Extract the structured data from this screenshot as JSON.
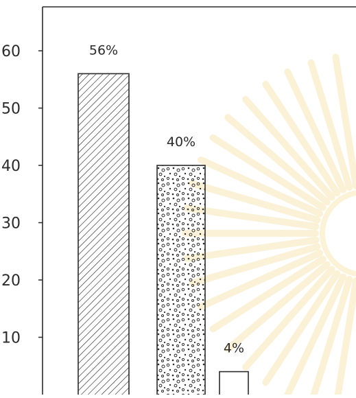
{
  "chart_data": {
    "type": "bar",
    "categories": [
      "",
      "",
      ""
    ],
    "values": [
      56,
      40,
      4
    ],
    "data_labels": [
      "56%",
      "40%",
      "4%"
    ],
    "yticks": [
      {
        "value": 10,
        "label": "10"
      },
      {
        "value": 20,
        "label": "20"
      },
      {
        "value": 30,
        "label": "30"
      },
      {
        "value": 40,
        "label": "40"
      },
      {
        "value": 50,
        "label": "50"
      },
      {
        "value": 60,
        "label": "60"
      }
    ],
    "ylim": [
      0,
      69
    ],
    "grid": false,
    "legend": "none",
    "bar_patterns": [
      "diagonal-hatch",
      "speckle",
      "blank"
    ],
    "colors": {
      "ink": "#2a2a2a",
      "watermark": "#f6e2a8",
      "background": "#ffffff"
    }
  }
}
